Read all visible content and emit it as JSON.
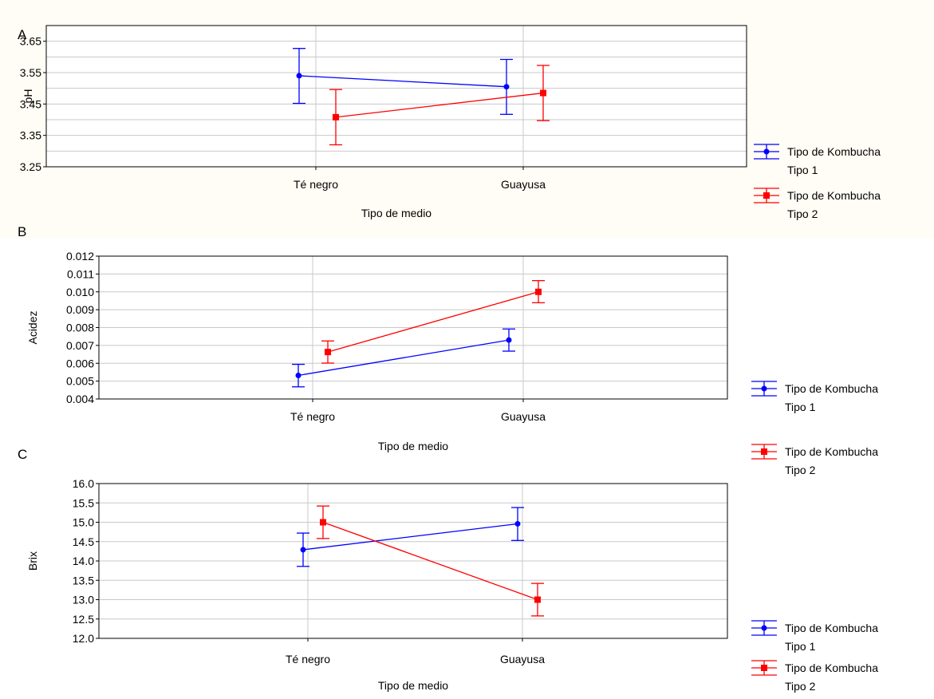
{
  "chart_data": [
    {
      "panel_label": "A",
      "type": "line",
      "categories": [
        "Té negro",
        "Guayusa"
      ],
      "xlabel": "Tipo de medio",
      "ylabel": "pH",
      "ylim": [
        3.25,
        3.7
      ],
      "yticks": [
        "3.65",
        "3.55",
        "3.45",
        "3.35",
        "3.25"
      ],
      "ytick_values": [
        3.65,
        3.55,
        3.45,
        3.35,
        3.25
      ],
      "grid": true,
      "legend_placement": "right",
      "series": [
        {
          "name": "Tipo de Kombucha Tipo 1",
          "legend_line1": "Tipo de Kombucha",
          "legend_line2": "Tipo 1",
          "color": "#0000ff",
          "marker": "circle",
          "values": [
            3.54,
            3.505
          ],
          "lower": [
            3.452,
            3.417
          ],
          "upper": [
            3.627,
            3.592
          ]
        },
        {
          "name": "Tipo de Kombucha Tipo 2",
          "legend_line1": "Tipo de Kombucha",
          "legend_line2": "Tipo 2",
          "color": "#ff0000",
          "marker": "square",
          "values": [
            3.408,
            3.485
          ],
          "lower": [
            3.32,
            3.397
          ],
          "upper": [
            3.496,
            3.573
          ]
        }
      ]
    },
    {
      "panel_label": "B",
      "type": "line",
      "categories": [
        "Té negro",
        "Guayusa"
      ],
      "xlabel": "Tipo de medio",
      "ylabel": "Acidez",
      "ylim": [
        0.004,
        0.012
      ],
      "yticks": [
        "0.012",
        "0.011",
        "0.010",
        "0.009",
        "0.008",
        "0.007",
        "0.006",
        "0.005",
        "0.004"
      ],
      "ytick_values": [
        0.012,
        0.011,
        0.01,
        0.009,
        0.008,
        0.007,
        0.006,
        0.005,
        0.004
      ],
      "grid": true,
      "legend_placement": "right",
      "series": [
        {
          "name": "Tipo de Kombucha Tipo 1",
          "legend_line1": "Tipo de Kombucha",
          "legend_line2": "Tipo 1",
          "color": "#0000ff",
          "marker": "circle",
          "values": [
            0.00532,
            0.0073
          ],
          "lower": [
            0.00468,
            0.00668
          ],
          "upper": [
            0.00594,
            0.00792
          ]
        },
        {
          "name": "Tipo de Kombucha Tipo 2",
          "legend_line1": "Tipo de Kombucha",
          "legend_line2": "Tipo 2",
          "color": "#ff0000",
          "marker": "square",
          "values": [
            0.00663,
            0.01
          ],
          "lower": [
            0.00601,
            0.00939
          ],
          "upper": [
            0.00725,
            0.01063
          ]
        }
      ]
    },
    {
      "panel_label": "C",
      "type": "line",
      "categories": [
        "Té negro",
        "Guayusa"
      ],
      "xlabel": "Tipo de medio",
      "ylabel": "Brix",
      "ylim": [
        12.0,
        16.0
      ],
      "yticks": [
        "16.0",
        "15.5",
        "15.0",
        "14.5",
        "14.0",
        "13.5",
        "13.0",
        "12.5",
        "12.0"
      ],
      "ytick_values": [
        16.0,
        15.5,
        15.0,
        14.5,
        14.0,
        13.5,
        13.0,
        12.5,
        12.0
      ],
      "grid": true,
      "legend_placement": "right",
      "series": [
        {
          "name": "Tipo de Kombucha Tipo 1",
          "legend_line1": "Tipo de Kombucha",
          "legend_line2": "Tipo 1",
          "color": "#0000ff",
          "marker": "circle",
          "values": [
            14.29,
            14.96
          ],
          "lower": [
            13.86,
            14.53
          ],
          "upper": [
            14.72,
            15.38
          ]
        },
        {
          "name": "Tipo de Kombucha Tipo 2",
          "legend_line1": "Tipo de Kombucha",
          "legend_line2": "Tipo 2",
          "color": "#ff0000",
          "marker": "square",
          "values": [
            15.0,
            13.0
          ],
          "lower": [
            14.58,
            12.58
          ],
          "upper": [
            15.42,
            13.42
          ]
        }
      ]
    }
  ]
}
